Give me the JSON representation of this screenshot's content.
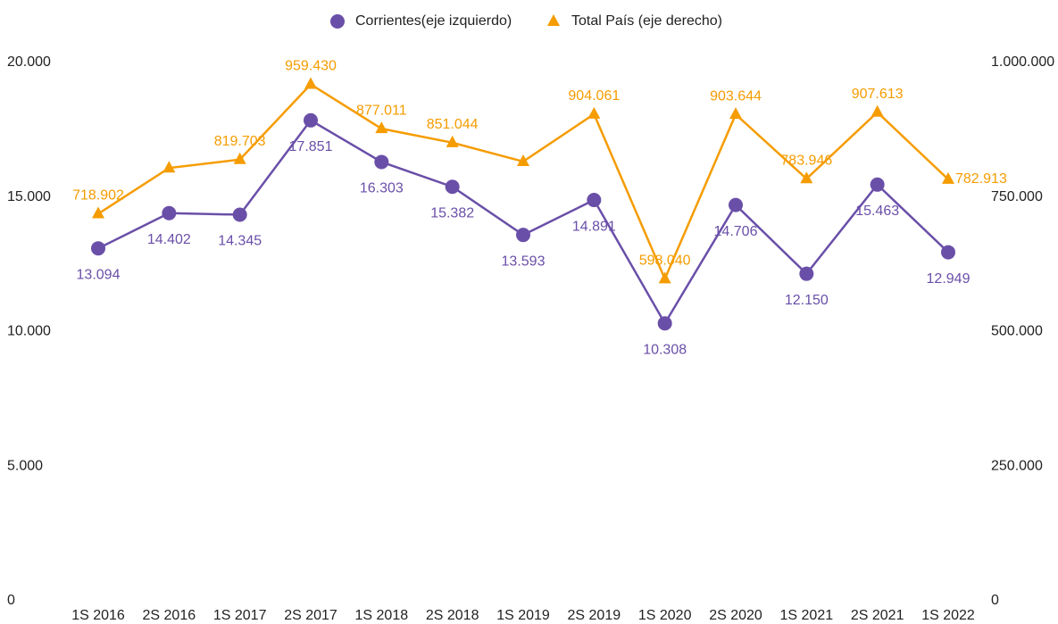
{
  "chart_data": {
    "type": "line",
    "categories": [
      "1S 2016",
      "2S 2016",
      "1S 2017",
      "2S 2017",
      "1S 2018",
      "2S 2018",
      "1S 2019",
      "2S 2019",
      "1S 2020",
      "2S 2020",
      "1S 2021",
      "2S 2021",
      "1S 2022"
    ],
    "series": [
      {
        "name": "Corrientes(eje izquierdo)",
        "color": "#6a4fa8",
        "marker": "circle",
        "values": [
          13094,
          14402,
          14345,
          17851,
          16303,
          15382,
          13593,
          14891,
          10308,
          14706,
          12150,
          15463,
          12949
        ],
        "value_labels": [
          "13.094",
          "14.402",
          "14.345",
          "17.851",
          "16.303",
          "15.382",
          "13.593",
          "14.891",
          "10.308",
          "14.706",
          "12.150",
          "15.463",
          "12.949"
        ]
      },
      {
        "name": "Total País (eje derecho)",
        "color": "#f59c00",
        "marker": "triangle",
        "axis": "y2",
        "values": [
          718902,
          804000,
          819703,
          959430,
          877011,
          851044,
          816000,
          904061,
          598040,
          903644,
          783946,
          907613,
          782913
        ],
        "value_labels": [
          "718.902",
          null,
          "819.703",
          "959.430",
          "877.011",
          "851.044",
          null,
          "904.061",
          "598.040",
          "903.644",
          "783.946",
          "907.613",
          "782.913"
        ]
      }
    ],
    "ylim": [
      0,
      20000
    ],
    "yticks": [
      0,
      {
        "value": 5000,
        "label": "5.000"
      },
      {
        "value": 10000,
        "label": "10.000"
      },
      {
        "value": 15000,
        "label": "15.000"
      },
      {
        "value": 20000,
        "label": "20.000"
      }
    ],
    "y2lim": [
      0,
      1000000
    ],
    "y2ticks": [
      0,
      {
        "value": 250000,
        "label": "250.000"
      },
      {
        "value": 500000,
        "label": "500.000"
      },
      {
        "value": 750000,
        "label": "750.000"
      },
      {
        "value": 1000000,
        "label": "1.000.000"
      }
    ],
    "grid": false,
    "legend": "top"
  }
}
